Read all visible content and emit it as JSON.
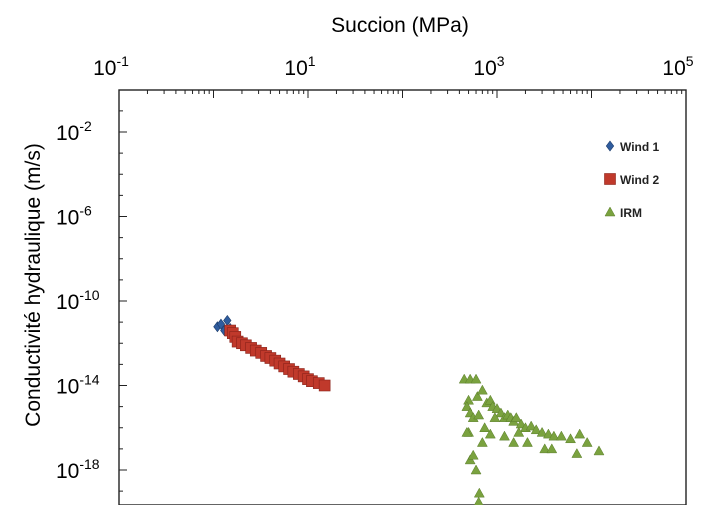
{
  "chart_data": {
    "type": "scatter",
    "title": "",
    "xlabel": "Succion (MPa)",
    "ylabel": "Conductivité hydraulique (m/s)",
    "x_scale": "log",
    "y_scale": "log",
    "xlim": [
      0.1,
      100000
    ],
    "ylim": [
      1e-20,
      1.0
    ],
    "x_ticks": [
      {
        "base": "10",
        "exp": "-1"
      },
      {
        "base": "10",
        "exp": "1"
      },
      {
        "base": "10",
        "exp": "3"
      },
      {
        "base": "10",
        "exp": "5"
      }
    ],
    "y_ticks": [
      {
        "value": 0.01,
        "base": "10",
        "exp": "-2"
      },
      {
        "value": 1e-06,
        "base": "10",
        "exp": "-6"
      },
      {
        "value": 1e-10,
        "base": "10",
        "exp": "-10"
      },
      {
        "value": 1e-14,
        "base": "10",
        "exp": "-14"
      },
      {
        "value": 1e-18,
        "base": "10",
        "exp": "-18"
      }
    ],
    "grid": false,
    "legend_position": "top-right",
    "series": [
      {
        "name": "Wind 1",
        "marker": "diamond",
        "color": "#2f5c9e",
        "points": [
          [
            1.1,
            6e-12
          ],
          [
            1.2,
            8e-12
          ],
          [
            1.3,
            4e-12
          ],
          [
            1.4,
            1.2e-11
          ],
          [
            1.5,
            5e-12
          ],
          [
            1.6,
            3e-12
          ],
          [
            1.8,
            2e-12
          ],
          [
            2.0,
            1.2e-12
          ],
          [
            2.3,
            8e-13
          ],
          [
            2.6,
            6e-13
          ]
        ]
      },
      {
        "name": "Wind 2",
        "marker": "square",
        "color": "#c0392b",
        "points": [
          [
            1.5,
            4e-12
          ],
          [
            1.6,
            3e-12
          ],
          [
            1.7,
            2e-12
          ],
          [
            1.8,
            1.2e-12
          ],
          [
            2.0,
            1e-12
          ],
          [
            2.2,
            8e-13
          ],
          [
            2.5,
            6e-13
          ],
          [
            2.8,
            4.5e-13
          ],
          [
            3.2,
            3.5e-13
          ],
          [
            3.6,
            2.5e-13
          ],
          [
            4.0,
            2e-13
          ],
          [
            4.5,
            1.5e-13
          ],
          [
            5.0,
            1.1e-13
          ],
          [
            5.6,
            8e-14
          ],
          [
            6.3,
            6e-14
          ],
          [
            7.0,
            4.5e-14
          ],
          [
            8.0,
            3.5e-14
          ],
          [
            9.0,
            2.7e-14
          ],
          [
            10,
            2e-14
          ],
          [
            11,
            1.6e-14
          ],
          [
            13,
            1.3e-14
          ],
          [
            15,
            1e-14
          ]
        ]
      },
      {
        "name": "IRM",
        "marker": "triangle",
        "color": "#7aa23f",
        "points": [
          [
            450,
            2e-14
          ],
          [
            520,
            2e-14
          ],
          [
            600,
            2e-14
          ],
          [
            500,
            2e-15
          ],
          [
            480,
            1e-15
          ],
          [
            520,
            5e-16
          ],
          [
            560,
            3e-16
          ],
          [
            620,
            3e-15
          ],
          [
            700,
            6e-15
          ],
          [
            780,
            1.5e-15
          ],
          [
            850,
            2e-15
          ],
          [
            900,
            1e-15
          ],
          [
            1000,
            8e-16
          ],
          [
            1100,
            5e-16
          ],
          [
            1200,
            3e-16
          ],
          [
            1300,
            4e-16
          ],
          [
            1400,
            3e-16
          ],
          [
            1500,
            2e-16
          ],
          [
            1600,
            3e-16
          ],
          [
            1800,
            1.5e-16
          ],
          [
            2000,
            1e-16
          ],
          [
            2300,
            1.2e-16
          ],
          [
            2600,
            8e-17
          ],
          [
            3000,
            6e-17
          ],
          [
            3500,
            5e-17
          ],
          [
            4000,
            4e-17
          ],
          [
            4800,
            4e-17
          ],
          [
            6000,
            3e-17
          ],
          [
            7500,
            5e-17
          ],
          [
            9000,
            2e-17
          ],
          [
            12000,
            8e-18
          ],
          [
            1200,
            4e-17
          ],
          [
            2100,
            2e-17
          ],
          [
            3200,
            1e-17
          ],
          [
            500,
            6e-17
          ],
          [
            520,
            3e-18
          ],
          [
            560,
            5e-18
          ],
          [
            600,
            1e-18
          ],
          [
            650,
            8e-20
          ],
          [
            640,
            3e-20
          ],
          [
            480,
            6e-17
          ],
          [
            700,
            2e-17
          ],
          [
            1500,
            2e-17
          ],
          [
            850,
            5e-17
          ],
          [
            950,
            3e-16
          ],
          [
            640,
            4e-16
          ],
          [
            740,
            1e-16
          ],
          [
            1700,
            6e-17
          ],
          [
            3800,
            1e-17
          ],
          [
            7000,
            6e-18
          ]
        ]
      }
    ]
  }
}
